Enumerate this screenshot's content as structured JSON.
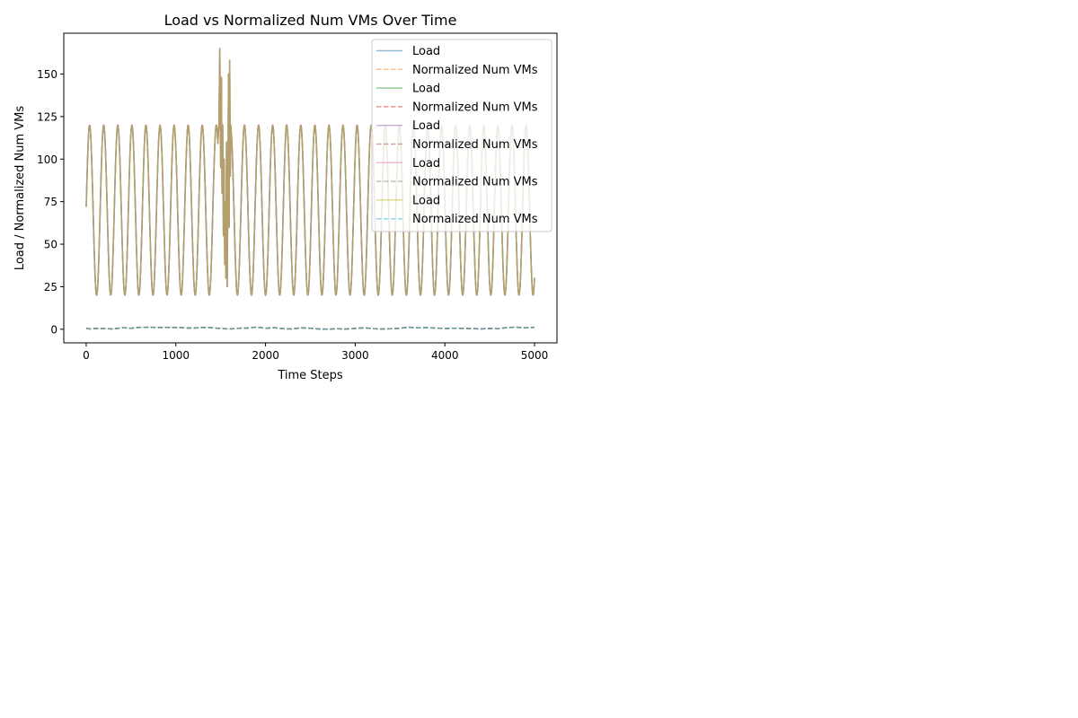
{
  "chart_data": {
    "type": "line",
    "title": "Load vs Normalized Num VMs Over Time",
    "xlabel": "Time Steps",
    "ylabel": "Load / Normalized Num VMs",
    "xlim": [
      -250,
      5250
    ],
    "ylim": [
      -8,
      174
    ],
    "xticks": [
      0,
      1000,
      2000,
      3000,
      4000,
      5000
    ],
    "xtick_labels": [
      "0",
      "1000",
      "2000",
      "3000",
      "4000",
      "5000"
    ],
    "yticks": [
      0,
      25,
      50,
      75,
      100,
      125,
      150
    ],
    "ytick_labels": [
      "0",
      "25",
      "50",
      "75",
      "100",
      "125",
      "150"
    ],
    "grid": false,
    "legend_position": "top-right",
    "load_model": {
      "x_start": 0,
      "x_end": 5000,
      "mean": 70,
      "amplitude": 50,
      "period": 157,
      "start_value": 72,
      "spike_range": [
        1470,
        1620
      ],
      "spike_points": [
        [
          1480,
          120
        ],
        [
          1490,
          165
        ],
        [
          1500,
          95
        ],
        [
          1508,
          148
        ],
        [
          1515,
          80
        ],
        [
          1522,
          120
        ],
        [
          1530,
          55
        ],
        [
          1537,
          100
        ],
        [
          1545,
          38
        ],
        [
          1552,
          75
        ],
        [
          1558,
          30
        ],
        [
          1565,
          110
        ],
        [
          1572,
          25
        ],
        [
          1580,
          85
        ],
        [
          1587,
          150
        ],
        [
          1594,
          60
        ],
        [
          1600,
          158
        ],
        [
          1606,
          90
        ],
        [
          1612,
          120
        ]
      ]
    },
    "vm_points": [
      [
        0,
        0.6
      ],
      [
        50,
        0.1
      ],
      [
        100,
        0.5
      ],
      [
        200,
        0.4
      ],
      [
        300,
        0.2
      ],
      [
        400,
        0.9
      ],
      [
        500,
        0.6
      ],
      [
        600,
        1.1
      ],
      [
        700,
        1.2
      ],
      [
        800,
        1.0
      ],
      [
        900,
        1.1
      ],
      [
        1000,
        1.0
      ],
      [
        1100,
        0.8
      ],
      [
        1200,
        0.7
      ],
      [
        1300,
        1.1
      ],
      [
        1400,
        0.9
      ],
      [
        1500,
        0.4
      ],
      [
        1600,
        0.2
      ],
      [
        1700,
        0.6
      ],
      [
        1800,
        0.7
      ],
      [
        1900,
        1.3
      ],
      [
        2000,
        0.6
      ],
      [
        2100,
        0.9
      ],
      [
        2200,
        0.3
      ],
      [
        2300,
        0.2
      ],
      [
        2400,
        0.8
      ],
      [
        2500,
        0.6
      ],
      [
        2600,
        0.1
      ],
      [
        2700,
        0.0
      ],
      [
        2800,
        0.3
      ],
      [
        2900,
        0.1
      ],
      [
        3000,
        0.5
      ],
      [
        3100,
        0.8
      ],
      [
        3200,
        0.4
      ],
      [
        3300,
        0.1
      ],
      [
        3400,
        0.3
      ],
      [
        3500,
        0.6
      ],
      [
        3600,
        1.2
      ],
      [
        3700,
        0.8
      ],
      [
        3800,
        0.9
      ],
      [
        3900,
        0.7
      ],
      [
        4000,
        0.4
      ],
      [
        4100,
        0.6
      ],
      [
        4200,
        0.5
      ],
      [
        4300,
        0.4
      ],
      [
        4400,
        0.2
      ],
      [
        4500,
        0.5
      ],
      [
        4600,
        0.3
      ],
      [
        4700,
        1.0
      ],
      [
        4800,
        1.2
      ],
      [
        4900,
        0.8
      ],
      [
        5000,
        1.1
      ]
    ],
    "series": [
      {
        "name": "Load",
        "color": "#1f77b4",
        "style": "solid"
      },
      {
        "name": "Normalized Num VMs",
        "color": "#ff7f0e",
        "style": "dashed"
      },
      {
        "name": "Load",
        "color": "#2ca02c",
        "style": "solid"
      },
      {
        "name": "Normalized Num VMs",
        "color": "#d62728",
        "style": "dashed"
      },
      {
        "name": "Load",
        "color": "#9467bd",
        "style": "solid"
      },
      {
        "name": "Normalized Num VMs",
        "color": "#8c564b",
        "style": "dashed"
      },
      {
        "name": "Load",
        "color": "#e377c2",
        "style": "solid"
      },
      {
        "name": "Normalized Num VMs",
        "color": "#7f7f7f",
        "style": "dashed"
      },
      {
        "name": "Load",
        "color": "#bcbd22",
        "style": "solid"
      },
      {
        "name": "Normalized Num VMs",
        "color": "#17becf",
        "style": "dashed"
      }
    ]
  }
}
